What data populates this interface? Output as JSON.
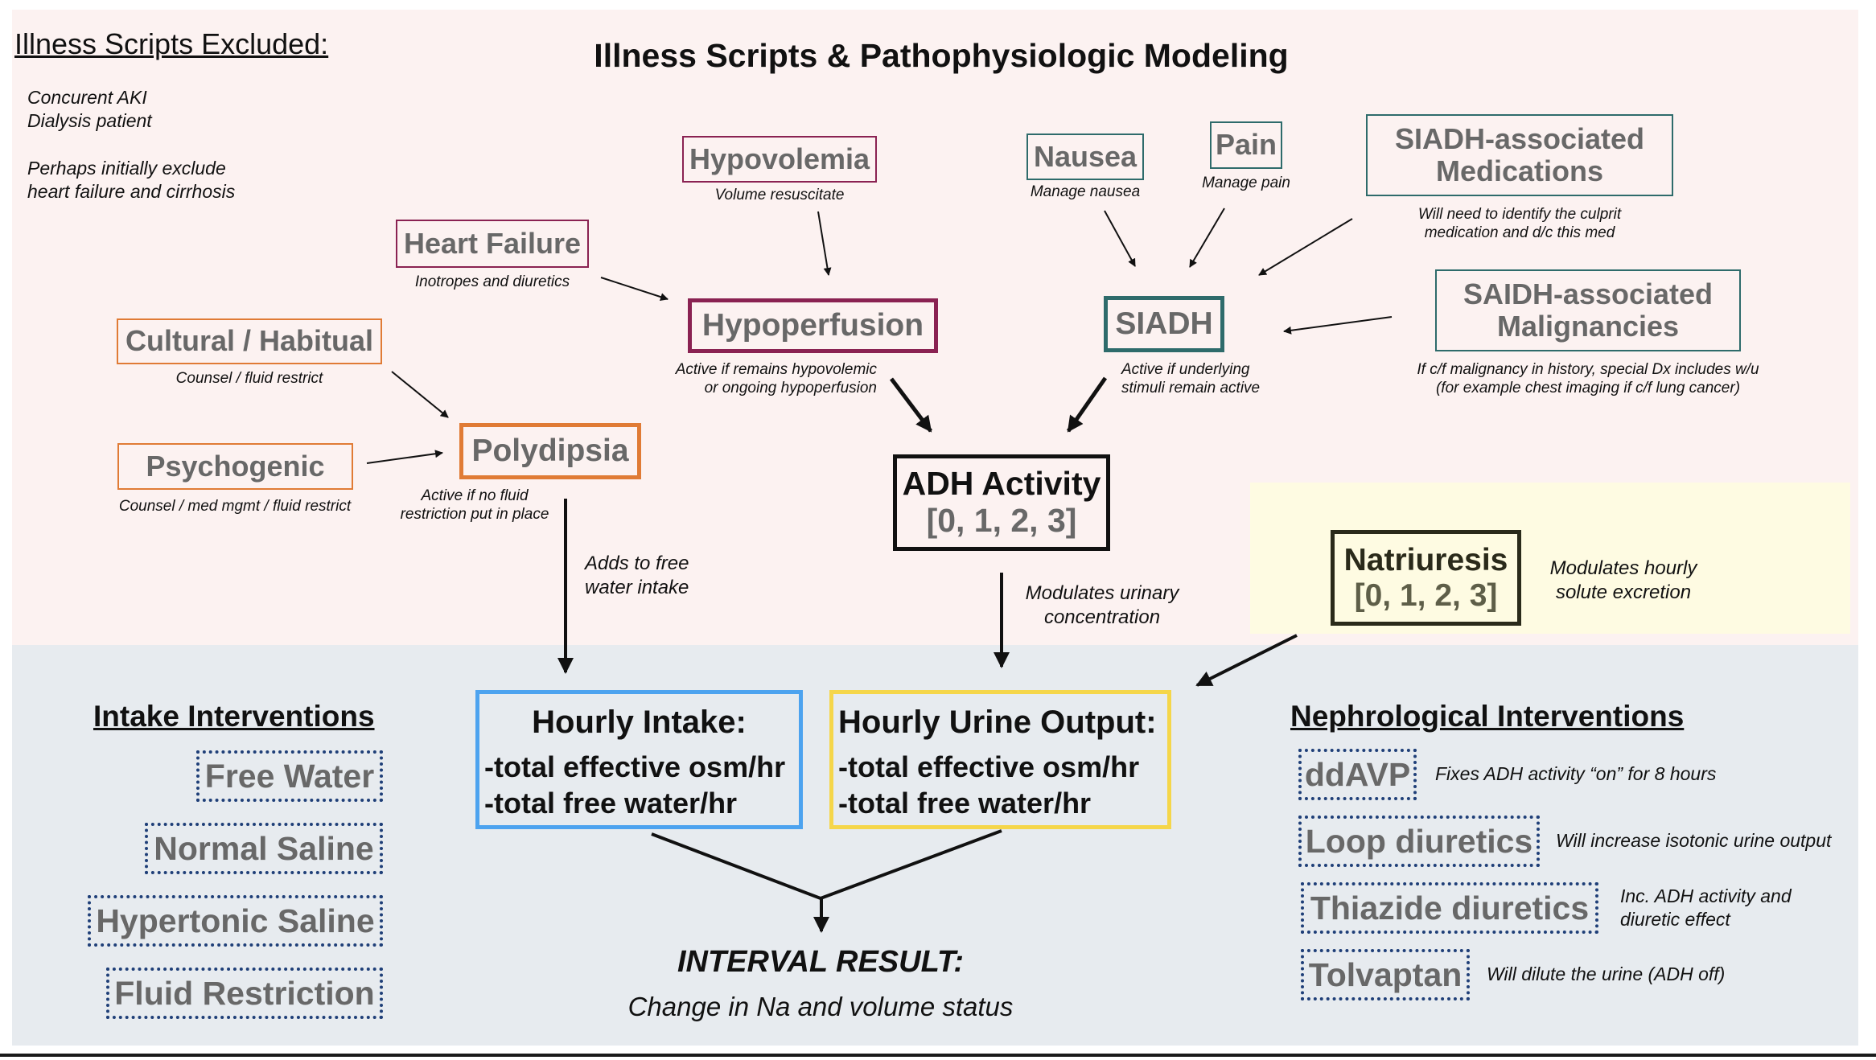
{
  "title": "Illness Scripts & Pathophysiologic Modeling",
  "excluded": {
    "heading": "Illness Scripts Excluded:",
    "line1": "Concurent AKI",
    "line2": "Dialysis patient",
    "line3": "Perhaps initially exclude",
    "line4": "heart failure and cirrhosis"
  },
  "hypovolemia": {
    "label": "Hypovolemia",
    "note": "Volume resuscitate"
  },
  "heart_failure": {
    "label": "Heart Failure",
    "note": "Inotropes and diuretics"
  },
  "nausea": {
    "label": "Nausea",
    "note": "Manage nausea"
  },
  "pain": {
    "label": "Pain",
    "note": "Manage pain"
  },
  "siadh_meds": {
    "label_line1": "SIADH-associated",
    "label_line2": "Medications",
    "note_line1": "Will need to identify the culprit",
    "note_line2": "medication and d/c this med"
  },
  "saidh_malig": {
    "label_line1": "SAIDH-associated",
    "label_line2": "Malignancies",
    "note_line1": "If c/f malignancy in history, special Dx includes w/u",
    "note_line2": "(for example chest imaging if c/f lung cancer)"
  },
  "cultural": {
    "label": "Cultural / Habitual",
    "note": "Counsel / fluid restrict"
  },
  "psychogenic": {
    "label": "Psychogenic",
    "note": "Counsel / med mgmt / fluid restrict"
  },
  "hypoperfusion": {
    "label": "Hypoperfusion",
    "note_line1": "Active if remains hypovolemic",
    "note_line2": "or ongoing hypoperfusion"
  },
  "siadh": {
    "label": "SIADH",
    "note_line1": "Active if underlying",
    "note_line2": "stimuli remain active"
  },
  "polydipsia": {
    "label": "Polydipsia",
    "note_line1": "Active if no fluid",
    "note_line2": "restriction put in place"
  },
  "adh": {
    "label": "ADH Activity",
    "scale": "[0, 1, 2, 3]"
  },
  "natriuresis": {
    "label": "Natriuresis",
    "scale": "[0, 1, 2, 3]",
    "note_line1": "Modulates hourly",
    "note_line2": "solute excretion"
  },
  "adds_free_water": {
    "line1": "Adds to free",
    "line2": "water intake"
  },
  "modulates_urinary": {
    "line1": "Modulates urinary",
    "line2": "concentration"
  },
  "hourly_intake": {
    "title": "Hourly Intake:",
    "line1": "-total effective osm/hr",
    "line2": "-total free water/hr"
  },
  "hourly_urine": {
    "title": "Hourly Urine Output:",
    "line1": "-total effective osm/hr",
    "line2": "-total free water/hr"
  },
  "intake_interventions": {
    "heading": "Intake Interventions",
    "items": [
      "Free Water",
      "Normal Saline",
      "Hypertonic Saline",
      "Fluid Restriction"
    ]
  },
  "neph_interventions": {
    "heading": "Nephrological Interventions",
    "items": [
      {
        "label": "ddAVP",
        "note_line1": "Fixes ADH activity “on” for 8 hours",
        "note_line2": ""
      },
      {
        "label": "Loop diuretics",
        "note_line1": "Will increase isotonic urine output",
        "note_line2": ""
      },
      {
        "label": "Thiazide diuretics",
        "note_line1": "Inc. ADH activity and",
        "note_line2": "diuretic effect"
      },
      {
        "label": "Tolvaptan",
        "note_line1": "Will dilute the urine (ADH off)",
        "note_line2": ""
      }
    ]
  },
  "result": {
    "title": "INTERVAL RESULT:",
    "subtitle": "Change in Na and volume status"
  },
  "colors": {
    "hypoperfusion": "#8a2252",
    "siadh": "#2e6b6b",
    "polydipsia": "#e07b35",
    "intake_box": "#4da3ef",
    "urine_box": "#f5d64a",
    "dotted": "#1f3f78",
    "natri_bg": "#fefbe2",
    "top_bg": "#fcf2f1",
    "bottom_bg": "#e7ebef"
  }
}
